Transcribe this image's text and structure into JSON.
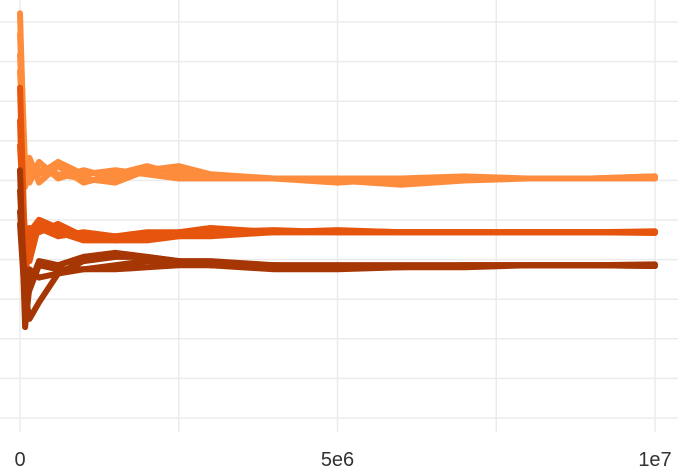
{
  "chart_data": {
    "type": "line",
    "title": "",
    "xlabel": "",
    "ylabel": "",
    "xlim": [
      0,
      10000000
    ],
    "ylim": [
      0,
      1
    ],
    "x_ticks": [
      {
        "value": 0,
        "label": "0"
      },
      {
        "value": 5000000,
        "label": "5e6"
      },
      {
        "value": 10000000,
        "label": "1e7"
      }
    ],
    "y_ticks_shown": false,
    "grid": true,
    "legend": "none",
    "groups": [
      {
        "color": "#fd8d3c",
        "lines": [
          {
            "x": [
              0,
              80000,
              150000,
              300000,
              600000,
              1000000,
              1500000,
              2000000,
              2500000,
              3000000,
              4000000,
              5000000,
              6000000,
              7000000,
              8000000,
              9000000,
              10000000
            ],
            "y": [
              0.88,
              0.58,
              0.63,
              0.57,
              0.61,
              0.57,
              0.59,
              0.61,
              0.59,
              0.58,
              0.58,
              0.57,
              0.58,
              0.58,
              0.58,
              0.58,
              0.585
            ]
          },
          {
            "x": [
              0,
              80000,
              150000,
              300000,
              600000,
              1000000,
              1500000,
              2000000,
              2500000,
              3000000,
              4000000,
              5000000,
              6000000,
              7000000,
              8000000,
              9000000,
              10000000
            ],
            "y": [
              0.93,
              0.61,
              0.57,
              0.62,
              0.58,
              0.6,
              0.58,
              0.6,
              0.61,
              0.59,
              0.58,
              0.58,
              0.57,
              0.58,
              0.58,
              0.58,
              0.58
            ]
          },
          {
            "x": [
              0,
              80000,
              150000,
              300000,
              600000,
              1000000,
              1500000,
              2000000,
              2500000,
              3000000,
              4000000,
              5000000,
              6000000,
              7000000,
              8000000,
              9000000,
              10000000
            ],
            "y": [
              0.98,
              0.56,
              0.61,
              0.59,
              0.62,
              0.59,
              0.6,
              0.59,
              0.58,
              0.58,
              0.58,
              0.575,
              0.565,
              0.575,
              0.58,
              0.58,
              0.585
            ]
          },
          {
            "x": [
              0,
              80000,
              150000,
              300000,
              600000,
              1000000,
              1500000,
              2000000,
              2500000,
              3000000,
              4000000,
              5000000,
              6000000,
              7000000,
              8000000,
              9000000,
              10000000
            ],
            "y": [
              0.84,
              0.6,
              0.58,
              0.6,
              0.59,
              0.58,
              0.57,
              0.6,
              0.6,
              0.585,
              0.58,
              0.58,
              0.58,
              0.585,
              0.58,
              0.58,
              0.58
            ]
          }
        ]
      },
      {
        "color": "#e6550d",
        "lines": [
          {
            "x": [
              0,
              80000,
              150000,
              300000,
              600000,
              1000000,
              1500000,
              2000000,
              2500000,
              3000000,
              4000000,
              5000000,
              6000000,
              7000000,
              8000000,
              9000000,
              10000000
            ],
            "y": [
              0.72,
              0.33,
              0.45,
              0.48,
              0.46,
              0.44,
              0.43,
              0.44,
              0.44,
              0.45,
              0.45,
              0.45,
              0.45,
              0.45,
              0.45,
              0.45,
              0.45
            ]
          },
          {
            "x": [
              0,
              80000,
              150000,
              300000,
              600000,
              1000000,
              1500000,
              2000000,
              2500000,
              3000000,
              4000000,
              5000000,
              6000000,
              7000000,
              8000000,
              9000000,
              10000000
            ],
            "y": [
              0.66,
              0.43,
              0.38,
              0.47,
              0.45,
              0.43,
              0.43,
              0.43,
              0.44,
              0.44,
              0.45,
              0.45,
              0.45,
              0.45,
              0.45,
              0.45,
              0.448
            ]
          },
          {
            "x": [
              0,
              80000,
              150000,
              300000,
              600000,
              1000000,
              1500000,
              2000000,
              2500000,
              3000000,
              4000000,
              5000000,
              6000000,
              7000000,
              8000000,
              9000000,
              10000000
            ],
            "y": [
              0.8,
              0.4,
              0.46,
              0.45,
              0.47,
              0.44,
              0.44,
              0.45,
              0.45,
              0.46,
              0.45,
              0.455,
              0.45,
              0.45,
              0.45,
              0.45,
              0.452
            ]
          },
          {
            "x": [
              0,
              80000,
              150000,
              300000,
              600000,
              1000000,
              1500000,
              2000000,
              2500000,
              3000000,
              4000000,
              5000000,
              6000000,
              7000000,
              8000000,
              9000000,
              10000000
            ],
            "y": [
              0.6,
              0.45,
              0.43,
              0.46,
              0.44,
              0.45,
              0.44,
              0.44,
              0.45,
              0.45,
              0.455,
              0.45,
              0.45,
              0.45,
              0.45,
              0.45,
              0.45
            ]
          }
        ]
      },
      {
        "color": "#a63603",
        "lines": [
          {
            "x": [
              0,
              80000,
              150000,
              300000,
              600000,
              1000000,
              1500000,
              2000000,
              2500000,
              3000000,
              4000000,
              5000000,
              6000000,
              7000000,
              8000000,
              9000000,
              10000000
            ],
            "y": [
              0.6,
              0.22,
              0.32,
              0.38,
              0.37,
              0.39,
              0.4,
              0.39,
              0.38,
              0.37,
              0.37,
              0.37,
              0.37,
              0.37,
              0.37,
              0.37,
              0.37
            ]
          },
          {
            "x": [
              0,
              80000,
              150000,
              300000,
              600000,
              1000000,
              1500000,
              2000000,
              2500000,
              3000000,
              4000000,
              5000000,
              6000000,
              7000000,
              8000000,
              9000000,
              10000000
            ],
            "y": [
              0.55,
              0.3,
              0.24,
              0.28,
              0.35,
              0.38,
              0.39,
              0.39,
              0.38,
              0.37,
              0.37,
              0.365,
              0.365,
              0.37,
              0.37,
              0.37,
              0.368
            ]
          },
          {
            "x": [
              0,
              80000,
              150000,
              300000,
              600000,
              1000000,
              1500000,
              2000000,
              2500000,
              3000000,
              4000000,
              5000000,
              6000000,
              7000000,
              8000000,
              9000000,
              10000000
            ],
            "y": [
              0.5,
              0.33,
              0.36,
              0.34,
              0.35,
              0.36,
              0.36,
              0.365,
              0.37,
              0.37,
              0.36,
              0.36,
              0.365,
              0.365,
              0.37,
              0.37,
              0.372
            ]
          },
          {
            "x": [
              0,
              80000,
              150000,
              300000,
              600000,
              1000000,
              1500000,
              2000000,
              2500000,
              3000000,
              4000000,
              5000000,
              6000000,
              7000000,
              8000000,
              9000000,
              10000000
            ],
            "y": [
              0.47,
              0.28,
              0.31,
              0.37,
              0.36,
              0.36,
              0.37,
              0.38,
              0.38,
              0.38,
              0.37,
              0.37,
              0.37,
              0.37,
              0.37,
              0.37,
              0.368
            ]
          }
        ]
      }
    ]
  }
}
